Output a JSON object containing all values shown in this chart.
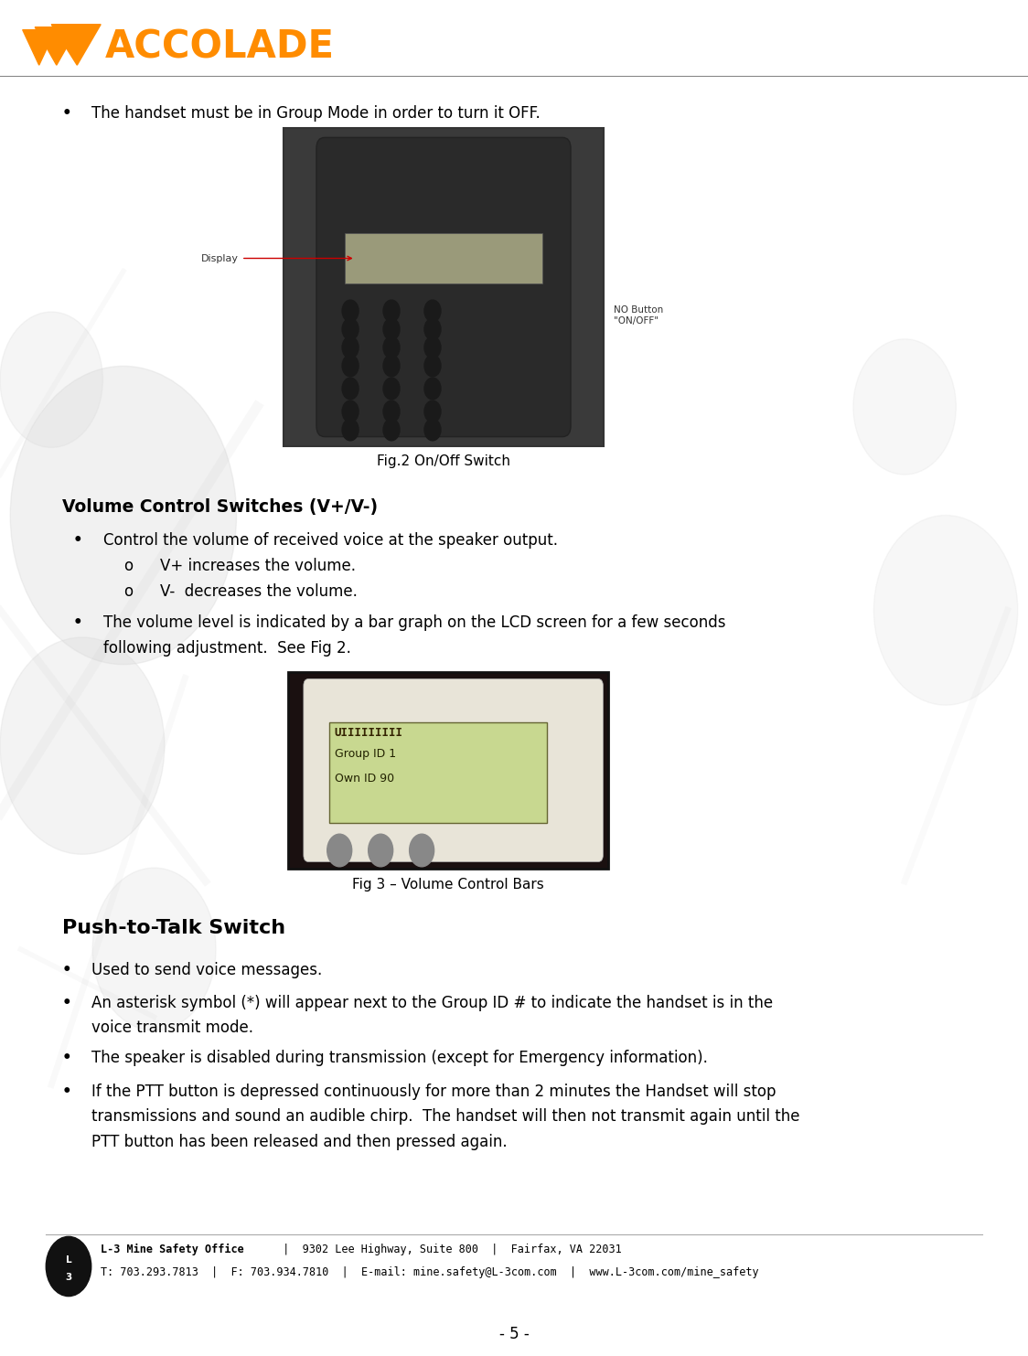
{
  "page_width": 11.24,
  "page_height": 14.83,
  "dpi": 100,
  "bg_color": "#ffffff",
  "logo_color": "#FF8C00",
  "logo_text": "ACCOLADE",
  "watermark_color_light": "#e0e0e0",
  "watermark_color_mid": "#d0d0d0",
  "body_text_color": "#000000",
  "bullet_char": "•",
  "sub_bullet_char": "o",
  "bullet1": "The handset must be in Group Mode in order to turn it OFF.",
  "fig2_caption": "Fig.2 On/Off Switch",
  "section_volume_title": "Volume Control Switches (V+/V-)",
  "vol_bullet1": "Control the volume of received voice at the speaker output.",
  "vol_sub1": "V+ increases the volume.",
  "vol_sub2": "V-  decreases the volume.",
  "vol_bullet2_line1": "The volume level is indicated by a bar graph on the LCD screen for a few seconds",
  "vol_bullet2_line2": "following adjustment.  See Fig 2.",
  "fig3_caption": "Fig 3 – Volume Control Bars",
  "section_ptt_title": "Push-to-Talk Switch",
  "ptt_bullet1": "Used to send voice messages.",
  "ptt_bullet2_line1": "An asterisk symbol (*) will appear next to the Group ID # to indicate the handset is in the",
  "ptt_bullet2_line2": "voice transmit mode.",
  "ptt_bullet3": "The speaker is disabled during transmission (except for Emergency information).",
  "ptt_bullet4_line1": "If the PTT button is depressed continuously for more than 2 minutes the Handset will stop",
  "ptt_bullet4_line2": "transmissions and sound an audible chirp.  The handset will then not transmit again until the",
  "ptt_bullet4_line3": "PTT button has been released and then pressed again.",
  "footer_line1_bold": "L-3 Mine Safety Office",
  "footer_line1_rest": "  |  9302 Lee Highway, Suite 800  |  Fairfax, VA 22031",
  "footer_line2": "T: 703.293.7813  |  F: 703.934.7810  |  E-mail: mine.safety@L-3com.com  |  www.L-3com.com/mine_safety",
  "page_number": "- 5 -",
  "lm": 0.09,
  "rm": 0.95,
  "body_fs": 12,
  "section_fs": 13.5,
  "ptt_section_fs": 16,
  "footer_fs": 8.5,
  "caption_fs": 11
}
